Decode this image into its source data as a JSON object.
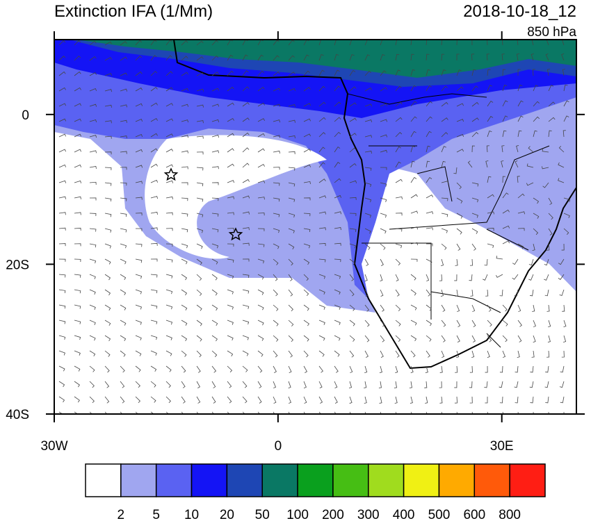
{
  "map": {
    "title": "Extinction IFA (1/Mm)",
    "valid_time": "2018-10-18_12",
    "level": "850 hPa",
    "xlim": [
      -30,
      40
    ],
    "ylim": [
      -40,
      10
    ],
    "xticks": [
      {
        "value": -30,
        "label": "30W"
      },
      0,
      {
        "value": 30,
        "label": "30E"
      }
    ],
    "yticks": [
      0,
      {
        "value": -20,
        "label": "20S"
      },
      {
        "value": -40,
        "label": "40S"
      }
    ]
  },
  "colorbar": {
    "levels": [
      2,
      5,
      10,
      20,
      50,
      100,
      200,
      300,
      400,
      500,
      600,
      800
    ],
    "colors": [
      "#ffffff",
      "#a0a6f0",
      "#5a62f2",
      "#1414f5",
      "#1e46b4",
      "#0a7864",
      "#0aa01e",
      "#46be14",
      "#a0dc1e",
      "#f0f014",
      "#ffaa00",
      "#ff5a0a",
      "#ff1e14"
    ]
  }
}
